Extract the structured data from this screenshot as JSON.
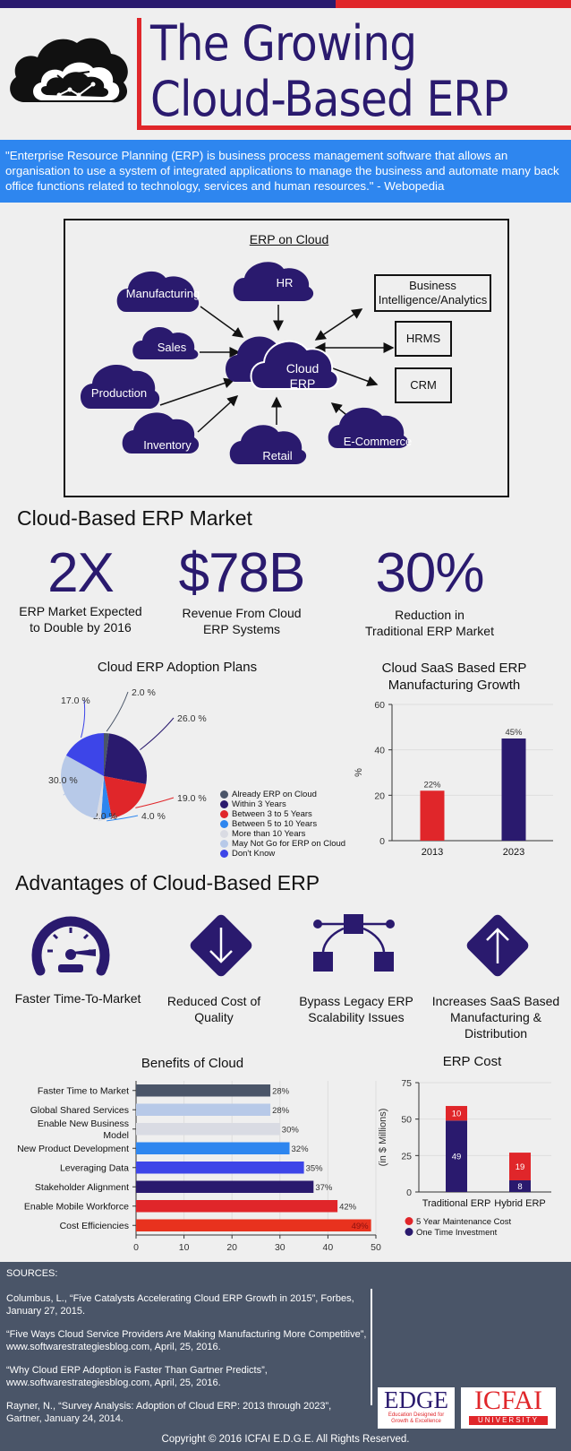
{
  "header": {
    "title_line1": "The Growing",
    "title_line2": "Cloud-Based ERP",
    "colors": {
      "navy": "#2a1a6e",
      "red": "#e0262a",
      "blue": "#2e86ef"
    },
    "icon": "cloud-analytics-icon"
  },
  "quote": "\"Enterprise Resource Planning (ERP) is business process management software that allows an organisation to use a system of integrated applications to manage the business and automate many back office functions related to technology, services and human resources.\" - Webopedia",
  "diagram": {
    "title": "ERP on Cloud",
    "center_line1": "Cloud",
    "center_line2": "ERP",
    "clouds": [
      "Manufacturing",
      "HR",
      "Sales",
      "Production",
      "Inventory",
      "Retail",
      "E-Commerce"
    ],
    "boxes_line1": "Business",
    "boxes_line2": "Intelligence/Analytics",
    "hrms": "HRMS",
    "crm": "CRM"
  },
  "market": {
    "heading": "Cloud-Based ERP Market",
    "stats": [
      {
        "value": "2X",
        "label_line1": "ERP Market Expected",
        "label_line2": "to Double by 2016"
      },
      {
        "value": "$78B",
        "label_line1": "Revenue From Cloud",
        "label_line2": "ERP Systems"
      },
      {
        "value": "30%",
        "label_line1": "Reduction in",
        "label_line2": "Traditional ERP Market"
      }
    ]
  },
  "chart_data": [
    {
      "type": "pie",
      "title": "Cloud ERP Adoption Plans",
      "categories": [
        "Already ERP on Cloud",
        "Within 3 Years",
        "Between 3 to 5 Years",
        "Between 5 to 10 Years",
        "More than 10 Years",
        "May Not Go for ERP on Cloud",
        "Don't Know"
      ],
      "values": [
        2.0,
        26.0,
        19.0,
        4.0,
        2.0,
        30.0,
        17.0
      ],
      "labels": [
        "2.0 %",
        "26.0 %",
        "19.0 %",
        "4.0 %",
        "2.0 %",
        "30.0 %",
        "17.0 %"
      ],
      "colors": [
        "#4a5568",
        "#2a1a6e",
        "#e0262a",
        "#2e86ef",
        "#d9dbe3",
        "#b7c9e8",
        "#3d45e8"
      ],
      "legend": "right"
    },
    {
      "type": "bar",
      "title_line1": "Cloud SaaS Based ERP",
      "title_line2": "Manufacturing Growth",
      "categories": [
        "2013",
        "2023"
      ],
      "values": [
        22,
        45
      ],
      "labels": [
        "22%",
        "45%"
      ],
      "colors": [
        "#e0262a",
        "#2a1a6e"
      ],
      "ylabel": "%",
      "ylim": [
        0,
        60
      ],
      "yticks": [
        "0",
        "20",
        "40",
        "60"
      ],
      "grid": true
    },
    {
      "type": "bar",
      "orientation": "horizontal",
      "title": "Benefits of Cloud",
      "categories": [
        "Faster Time to Market",
        "Global Shared Services",
        "Enable New Business Model",
        "New Product Development",
        "Leveraging Data",
        "Stakeholder Alignment",
        "Enable Mobile Workforce",
        "Cost Efficiencies"
      ],
      "category_lines": [
        [
          "Faster Time to Market"
        ],
        [
          "Global Shared Services"
        ],
        [
          "Enable New Business",
          "Model"
        ],
        [
          "New Product Development"
        ],
        [
          "Leveraging Data"
        ],
        [
          "Stakeholder Alignment"
        ],
        [
          "Enable Mobile Workforce"
        ],
        [
          "Cost Efficiencies"
        ]
      ],
      "values": [
        28,
        28,
        30,
        32,
        35,
        37,
        42,
        49
      ],
      "labels": [
        "28%",
        "28%",
        "30%",
        "32%",
        "35%",
        "37%",
        "42%",
        "49%"
      ],
      "colors": [
        "#4a5568",
        "#b7c9e8",
        "#d9dbe3",
        "#2e86ef",
        "#3d45e8",
        "#2a1a6e",
        "#e0262a",
        "#e8321e"
      ],
      "xlim": [
        0,
        50
      ],
      "xticks": [
        "0",
        "10",
        "20",
        "30",
        "40",
        "50"
      ],
      "grid": true
    },
    {
      "type": "bar",
      "stacked": true,
      "title": "ERP Cost",
      "categories": [
        "Traditional ERP",
        "Hybrid ERP"
      ],
      "series": [
        {
          "name": "One Time Investment",
          "values": [
            49,
            8
          ],
          "color": "#2a1a6e"
        },
        {
          "name": "5 Year Maintenance Cost",
          "values": [
            10,
            19
          ],
          "color": "#e0262a"
        }
      ],
      "ylabel": "(in $ Millions)",
      "ylim": [
        0,
        75
      ],
      "yticks": [
        "0",
        "25",
        "50",
        "75"
      ],
      "legend": "bottom"
    }
  ],
  "advantages": {
    "heading": "Advantages of Cloud-Based ERP",
    "items": [
      {
        "icon": "speedometer-icon",
        "line1": "Faster Time-To-Market",
        "line2": "",
        "line3": ""
      },
      {
        "icon": "down-arrow-diamond-icon",
        "line1": "Reduced Cost of",
        "line2": "Quality",
        "line3": ""
      },
      {
        "icon": "bezier-path-icon",
        "line1": "Bypass Legacy ERP",
        "line2": "Scalability Issues",
        "line3": ""
      },
      {
        "icon": "up-arrow-diamond-icon",
        "line1": "Increases SaaS Based",
        "line2": "Manufacturing &",
        "line3": "Distribution"
      }
    ]
  },
  "sources": {
    "heading": "SOURCES:",
    "items": [
      {
        "line1": "Columbus, L., “Five Catalysts Accelerating Cloud ERP Growth in 2015”, Forbes,",
        "line2": "January 27, 2015."
      },
      {
        "line1": "“Five Ways Cloud Service Providers Are Making Manufacturing More Competitive”,",
        "line2": "www.softwarestrategiesblog.com, April, 25, 2016."
      },
      {
        "line1": "“Why Cloud ERP Adoption is Faster Than Gartner Predicts”,",
        "line2": "www.softwarestrategiesblog.com, April, 25, 2016."
      },
      {
        "line1": "Rayner, N., “Survey Analysis: Adoption of Cloud ERP: 2013 through 2023”,",
        "line2": "Gartner, January 24, 2014."
      }
    ],
    "logo_edge": "EDGE",
    "logo_edge_tag1": "Education Designed for",
    "logo_edge_tag2": "Growth & Excellence",
    "logo_icfai": "ICFAI",
    "logo_icfai_tag": "UNIVERSITY",
    "copyright": "Copyright © 2016 ICFAI E.D.G.E. All Rights Reserved."
  }
}
